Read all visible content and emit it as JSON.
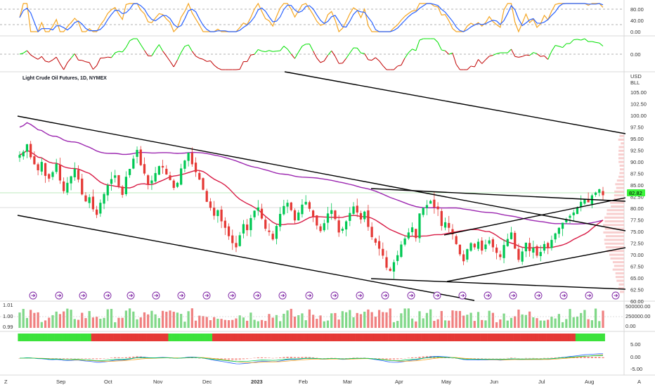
{
  "chart_data": {
    "type": "candlestick",
    "title": "Light Crude Oil Futures, 1D, NYMEX",
    "currency_label": "USD",
    "unit_label": "BLL",
    "current_price": "82.82",
    "price_axis": {
      "range": [
        60,
        107
      ],
      "ticks": [
        "105.00",
        "102.50",
        "100.00",
        "97.50",
        "95.00",
        "92.50",
        "90.00",
        "87.50",
        "85.00",
        "82.50",
        "80.00",
        "77.50",
        "75.00",
        "72.50",
        "70.00",
        "67.50",
        "65.00",
        "62.50",
        "60.00"
      ]
    },
    "stoch_axis": {
      "ticks": [
        "80.00",
        "40.00",
        "0.00"
      ]
    },
    "momentum_axis": {
      "ticks": [
        "0.00"
      ]
    },
    "volume_axis": {
      "ticks": [
        "500000.00",
        "250000.00",
        "0.00"
      ]
    },
    "volume_left_ticks": [
      "1.01",
      "1.00",
      "0.99"
    ],
    "macd_axis": {
      "ticks": [
        "5.00",
        "0.00",
        "-5.00"
      ]
    },
    "x_axis": {
      "labels": [
        "Sep",
        "Oct",
        "Nov",
        "Dec",
        "2023",
        "Feb",
        "Mar",
        "Apr",
        "May",
        "Jun",
        "Jul",
        "Aug"
      ],
      "year_label": "2023"
    },
    "closes": [
      91.5,
      92.2,
      93.8,
      91.0,
      89.5,
      88.2,
      90.0,
      87.0,
      86.4,
      87.8,
      89.6,
      86.0,
      83.7,
      85.5,
      86.9,
      88.5,
      86.2,
      83.0,
      81.5,
      82.4,
      79.8,
      78.6,
      81.2,
      83.1,
      85.0,
      86.3,
      87.1,
      84.8,
      82.9,
      86.8,
      88.5,
      90.7,
      92.6,
      89.3,
      87.5,
      85.2,
      86.0,
      87.6,
      89.1,
      88.8,
      87.3,
      86.1,
      84.4,
      85.5,
      88.6,
      90.3,
      92.0,
      89.5,
      87.8,
      86.2,
      84.0,
      81.4,
      80.1,
      78.4,
      79.6,
      77.2,
      75.8,
      74.0,
      72.5,
      71.6,
      74.2,
      76.6,
      75.3,
      77.9,
      79.5,
      80.2,
      77.8,
      75.6,
      74.9,
      73.3,
      76.2,
      78.8,
      80.5,
      81.2,
      79.6,
      77.4,
      79.1,
      80.8,
      81.4,
      79.9,
      78.2,
      76.3,
      75.1,
      76.8,
      78.9,
      79.6,
      77.7,
      74.8,
      75.6,
      77.2,
      79.0,
      80.4,
      79.1,
      77.6,
      79.3,
      76.0,
      73.8,
      72.6,
      71.3,
      69.8,
      67.2,
      66.5,
      68.4,
      69.9,
      72.2,
      73.5,
      74.8,
      75.9,
      73.6,
      78.9,
      80.1,
      80.7,
      81.6,
      80.2,
      79.8,
      76.2,
      77.0,
      75.8,
      74.4,
      72.3,
      70.1,
      68.6,
      71.2,
      72.5,
      71.6,
      72.8,
      70.9,
      72.2,
      73.1,
      71.6,
      70.4,
      69.5,
      72.1,
      73.4,
      74.8,
      71.3,
      68.9,
      70.7,
      72.6,
      70.8,
      71.5,
      69.8,
      70.6,
      72.3,
      71.4,
      73.2,
      74.6,
      75.8,
      76.9,
      77.6,
      78.4,
      79.1,
      80.2,
      81.4,
      82.0,
      81.3,
      82.8,
      83.4,
      84.1,
      82.82
    ],
    "lines": {
      "sma_short_color": "#d81b45",
      "sma_long_color": "#9c27b0",
      "trendline_color": "#000000",
      "stoch_k_color": "#f5a623",
      "stoch_d_color": "#2962ff",
      "momentum_up_color": "#00e000",
      "momentum_down_color": "#c00000",
      "volume_up_color": "#80d888",
      "volume_down_color": "#f08080",
      "candle_up_color": "#00c853",
      "candle_down_color": "#e53935",
      "price_tag_color": "#3cf43c"
    }
  },
  "footer": {
    "left_icon": "Z",
    "right_icon": "A"
  }
}
